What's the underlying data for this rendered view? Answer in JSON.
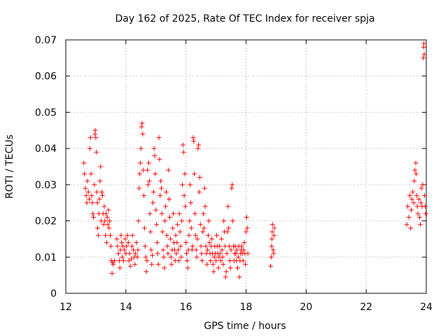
{
  "chart_data": {
    "type": "scatter",
    "title": "Day 162 of 2025, Rate Of TEC Index for receiver spja",
    "xlabel": "GPS time / hours",
    "ylabel": "ROTI / TECUs",
    "xlim": [
      12,
      24
    ],
    "ylim": [
      0,
      0.07
    ],
    "xticks": [
      12,
      14,
      16,
      18,
      20,
      22,
      24
    ],
    "xtick_labels": [
      "12",
      "14",
      "16",
      "18",
      "20",
      "22",
      "24"
    ],
    "yticks": [
      0,
      0.01,
      0.02,
      0.03,
      0.04,
      0.05,
      0.06,
      0.07
    ],
    "ytick_labels": [
      "0",
      "0.01",
      "0.02",
      "0.03",
      "0.04",
      "0.05",
      "0.06",
      "0.07"
    ],
    "grid": true,
    "marker": "plus",
    "color": "#ff0000",
    "series": [
      {
        "points": [
          [
            12.6,
            0.036
          ],
          [
            12.62,
            0.033
          ],
          [
            12.65,
            0.029
          ],
          [
            12.68,
            0.027
          ],
          [
            12.7,
            0.025
          ],
          [
            12.72,
            0.031
          ],
          [
            12.75,
            0.028
          ],
          [
            12.78,
            0.026
          ],
          [
            12.8,
            0.04
          ],
          [
            12.82,
            0.043
          ],
          [
            12.84,
            0.033
          ],
          [
            12.86,
            0.027
          ],
          [
            12.88,
            0.025
          ],
          [
            12.9,
            0.022
          ],
          [
            12.92,
            0.021
          ],
          [
            12.95,
            0.03
          ],
          [
            12.97,
            0.044
          ],
          [
            12.98,
            0.045
          ],
          [
            13.0,
            0.043
          ],
          [
            13.02,
            0.039
          ],
          [
            13.03,
            0.028
          ],
          [
            13.05,
            0.025
          ],
          [
            13.06,
            0.018
          ],
          [
            13.08,
            0.016
          ],
          [
            13.1,
            0.022
          ],
          [
            13.12,
            0.026
          ],
          [
            13.14,
            0.031
          ],
          [
            13.16,
            0.035
          ],
          [
            13.18,
            0.02
          ],
          [
            13.2,
            0.028
          ],
          [
            13.22,
            0.027
          ],
          [
            13.24,
            0.022
          ],
          [
            13.26,
            0.019
          ],
          [
            13.28,
            0.024
          ],
          [
            13.3,
            0.02
          ],
          [
            13.32,
            0.016
          ],
          [
            13.34,
            0.022
          ],
          [
            13.36,
            0.014
          ],
          [
            13.38,
            0.021
          ],
          [
            13.4,
            0.019
          ],
          [
            13.42,
            0.023
          ],
          [
            13.44,
            0.018
          ],
          [
            13.46,
            0.02
          ],
          [
            13.48,
            0.016
          ],
          [
            13.5,
            0.013
          ],
          [
            13.52,
            0.009
          ],
          [
            13.54,
            0.0055
          ],
          [
            13.56,
            0.0085
          ],
          [
            13.58,
            0.008
          ],
          [
            13.62,
            0.009
          ],
          [
            13.7,
            0.015
          ],
          [
            13.72,
            0.013
          ],
          [
            13.75,
            0.011
          ],
          [
            13.78,
            0.009
          ],
          [
            13.8,
            0.007
          ],
          [
            13.82,
            0.012
          ],
          [
            13.84,
            0.016
          ],
          [
            13.86,
            0.014
          ],
          [
            13.88,
            0.01
          ],
          [
            13.9,
            0.013
          ],
          [
            13.92,
            0.009
          ],
          [
            13.95,
            0.012
          ],
          [
            13.98,
            0.015
          ],
          [
            14.0,
            0.011
          ],
          [
            14.02,
            0.013
          ],
          [
            14.05,
            0.016
          ],
          [
            14.08,
            0.014
          ],
          [
            14.1,
            0.009
          ],
          [
            14.12,
            0.011
          ],
          [
            14.15,
            0.0075
          ],
          [
            14.18,
            0.0095
          ],
          [
            14.2,
            0.013
          ],
          [
            14.22,
            0.016
          ],
          [
            14.25,
            0.012
          ],
          [
            14.28,
            0.01
          ],
          [
            14.3,
            0.008
          ],
          [
            14.32,
            0.011
          ],
          [
            14.35,
            0.014
          ],
          [
            14.38,
            0.01
          ],
          [
            14.4,
            0.012
          ],
          [
            14.42,
            0.02
          ],
          [
            14.44,
            0.029
          ],
          [
            14.46,
            0.033
          ],
          [
            14.48,
            0.036
          ],
          [
            14.5,
            0.04
          ],
          [
            14.52,
            0.046
          ],
          [
            14.54,
            0.047
          ],
          [
            14.56,
            0.044
          ],
          [
            14.58,
            0.034
          ],
          [
            14.6,
            0.027
          ],
          [
            14.62,
            0.018
          ],
          [
            14.64,
            0.013
          ],
          [
            14.66,
            0.01
          ],
          [
            14.68,
            0.006
          ],
          [
            14.7,
            0.009
          ],
          [
            14.72,
            0.034
          ],
          [
            14.74,
            0.03
          ],
          [
            14.76,
            0.036
          ],
          [
            14.78,
            0.031
          ],
          [
            14.8,
            0.022
          ],
          [
            14.82,
            0.017
          ],
          [
            14.84,
            0.012
          ],
          [
            14.86,
            0.008
          ],
          [
            14.88,
            0.0105
          ],
          [
            14.9,
            0.025
          ],
          [
            14.92,
            0.028
          ],
          [
            14.94,
            0.04
          ],
          [
            14.96,
            0.038
          ],
          [
            14.98,
            0.033
          ],
          [
            15.0,
            0.023
          ],
          [
            15.02,
            0.019
          ],
          [
            15.04,
            0.014
          ],
          [
            15.06,
            0.011
          ],
          [
            15.08,
            0.008
          ],
          [
            15.1,
            0.043
          ],
          [
            15.12,
            0.037
          ],
          [
            15.14,
            0.027
          ],
          [
            15.16,
            0.031
          ],
          [
            15.18,
            0.029
          ],
          [
            15.2,
            0.022
          ],
          [
            15.22,
            0.017
          ],
          [
            15.24,
            0.012
          ],
          [
            15.26,
            0.01
          ],
          [
            15.28,
            0.007
          ],
          [
            15.3,
            0.02
          ],
          [
            15.32,
            0.024
          ],
          [
            15.34,
            0.028
          ],
          [
            15.36,
            0.016
          ],
          [
            15.38,
            0.013
          ],
          [
            15.4,
            0.011
          ],
          [
            15.42,
            0.034
          ],
          [
            15.44,
            0.026
          ],
          [
            15.46,
            0.021
          ],
          [
            15.48,
            0.015
          ],
          [
            15.5,
            0.01
          ],
          [
            15.52,
            0.008
          ],
          [
            15.54,
            0.012
          ],
          [
            15.56,
            0.018
          ],
          [
            15.58,
            0.022
          ],
          [
            15.6,
            0.014
          ],
          [
            15.62,
            0.012
          ],
          [
            15.64,
            0.009
          ],
          [
            15.66,
            0.016
          ],
          [
            15.68,
            0.011
          ],
          [
            15.7,
            0.014
          ],
          [
            15.72,
            0.019
          ],
          [
            15.74,
            0.012
          ],
          [
            15.76,
            0.009
          ],
          [
            15.78,
            0.022
          ],
          [
            15.8,
            0.017
          ],
          [
            15.82,
            0.013
          ],
          [
            15.84,
            0.01
          ],
          [
            15.86,
            0.02
          ],
          [
            15.88,
            0.03
          ],
          [
            15.9,
            0.041
          ],
          [
            15.92,
            0.039
          ],
          [
            15.94,
            0.027
          ],
          [
            15.96,
            0.033
          ],
          [
            15.98,
            0.024
          ],
          [
            16.0,
            0.014
          ],
          [
            16.02,
            0.011
          ],
          [
            16.04,
            0.009
          ],
          [
            16.06,
            0.007
          ],
          [
            16.08,
            0.012
          ],
          [
            16.1,
            0.016
          ],
          [
            16.12,
            0.02
          ],
          [
            16.14,
            0.03
          ],
          [
            16.16,
            0.025
          ],
          [
            16.18,
            0.018
          ],
          [
            16.2,
            0.012
          ],
          [
            16.22,
            0.013
          ],
          [
            16.24,
            0.043
          ],
          [
            16.26,
            0.042
          ],
          [
            16.28,
            0.033
          ],
          [
            16.3,
            0.022
          ],
          [
            16.32,
            0.016
          ],
          [
            16.34,
            0.012
          ],
          [
            16.36,
            0.01
          ],
          [
            16.38,
            0.015
          ],
          [
            16.4,
            0.04
          ],
          [
            16.42,
            0.041
          ],
          [
            16.44,
            0.028
          ],
          [
            16.46,
            0.032
          ],
          [
            16.48,
            0.019
          ],
          [
            16.5,
            0.013
          ],
          [
            16.52,
            0.011
          ],
          [
            16.54,
            0.009
          ],
          [
            16.56,
            0.017
          ],
          [
            16.58,
            0.022
          ],
          [
            16.6,
            0.018
          ],
          [
            16.62,
            0.029
          ],
          [
            16.64,
            0.024
          ],
          [
            16.66,
            0.013
          ],
          [
            16.68,
            0.011
          ],
          [
            16.7,
            0.008
          ],
          [
            16.72,
            0.012
          ],
          [
            16.74,
            0.016
          ],
          [
            16.76,
            0.02
          ],
          [
            16.78,
            0.014
          ],
          [
            16.8,
            0.011
          ],
          [
            16.82,
            0.009
          ],
          [
            16.84,
            0.013
          ],
          [
            16.86,
            0.015
          ],
          [
            16.88,
            0.011
          ],
          [
            16.9,
            0.008
          ],
          [
            16.92,
            0.006
          ],
          [
            16.94,
            0.01
          ],
          [
            16.96,
            0.013
          ],
          [
            16.98,
            0.011
          ],
          [
            17.0,
            0.009
          ],
          [
            17.02,
            0.016
          ],
          [
            17.04,
            0.013
          ],
          [
            17.06,
            0.011
          ],
          [
            17.08,
            0.007
          ],
          [
            17.1,
            0.01
          ],
          [
            17.12,
            0.013
          ],
          [
            17.14,
            0.011
          ],
          [
            17.16,
            0.009
          ],
          [
            17.18,
            0.015
          ],
          [
            17.2,
            0.012
          ],
          [
            17.22,
            0.01
          ],
          [
            17.24,
            0.008
          ],
          [
            17.26,
            0.02
          ],
          [
            17.28,
            0.017
          ],
          [
            17.3,
            0.013
          ],
          [
            17.32,
            0.0045
          ],
          [
            17.34,
            0.006
          ],
          [
            17.36,
            0.011
          ],
          [
            17.38,
            0.017
          ],
          [
            17.4,
            0.024
          ],
          [
            17.42,
            0.018
          ],
          [
            17.44,
            0.013
          ],
          [
            17.46,
            0.009
          ],
          [
            17.48,
            0.007
          ],
          [
            17.5,
            0.012
          ],
          [
            17.52,
            0.029
          ],
          [
            17.54,
            0.03
          ],
          [
            17.56,
            0.02
          ],
          [
            17.58,
            0.013
          ],
          [
            17.6,
            0.009
          ],
          [
            17.62,
            0.011
          ],
          [
            17.64,
            0.013
          ],
          [
            17.66,
            0.011
          ],
          [
            17.68,
            0.009
          ],
          [
            17.7,
            0.012
          ],
          [
            17.72,
            0.007
          ],
          [
            17.74,
            0.01
          ],
          [
            17.76,
            0.013
          ],
          [
            17.78,
            0.0045
          ],
          [
            17.8,
            0.009
          ],
          [
            17.82,
            0.011
          ],
          [
            17.84,
            0.012
          ],
          [
            17.86,
            0.013
          ],
          [
            17.88,
            0.011
          ],
          [
            17.9,
            0.009
          ],
          [
            17.92,
            0.012
          ],
          [
            17.94,
            0.014
          ],
          [
            17.96,
            0.011
          ],
          [
            17.98,
            0.008
          ],
          [
            18.0,
            0.017
          ],
          [
            18.02,
            0.021
          ],
          [
            18.04,
            0.018
          ],
          [
            18.06,
            0.011
          ],
          [
            18.82,
            0.0075
          ],
          [
            18.84,
            0.01
          ],
          [
            18.85,
            0.013
          ],
          [
            18.86,
            0.015
          ],
          [
            18.87,
            0.017
          ],
          [
            18.88,
            0.019
          ],
          [
            18.9,
            0.012
          ],
          [
            18.92,
            0.011
          ],
          [
            18.93,
            0.016
          ],
          [
            18.94,
            0.018
          ],
          [
            23.35,
            0.019
          ],
          [
            23.38,
            0.024
          ],
          [
            23.42,
            0.021
          ],
          [
            23.45,
            0.027
          ],
          [
            23.48,
            0.018
          ],
          [
            23.5,
            0.023
          ],
          [
            23.52,
            0.026
          ],
          [
            23.55,
            0.028
          ],
          [
            23.58,
            0.025
          ],
          [
            23.6,
            0.031
          ],
          [
            23.62,
            0.034
          ],
          [
            23.65,
            0.036
          ],
          [
            23.66,
            0.033
          ],
          [
            23.68,
            0.027
          ],
          [
            23.7,
            0.024
          ],
          [
            23.72,
            0.022
          ],
          [
            23.75,
            0.026
          ],
          [
            23.78,
            0.021
          ],
          [
            23.8,
            0.019
          ],
          [
            23.82,
            0.025
          ],
          [
            23.84,
            0.029
          ],
          [
            23.86,
            0.024
          ],
          [
            23.88,
            0.03
          ],
          [
            23.9,
            0.065
          ],
          [
            23.91,
            0.068
          ],
          [
            23.92,
            0.069
          ],
          [
            23.93,
            0.066
          ],
          [
            23.94,
            0.027
          ],
          [
            23.96,
            0.024
          ],
          [
            23.98,
            0.022
          ]
        ]
      }
    ]
  }
}
